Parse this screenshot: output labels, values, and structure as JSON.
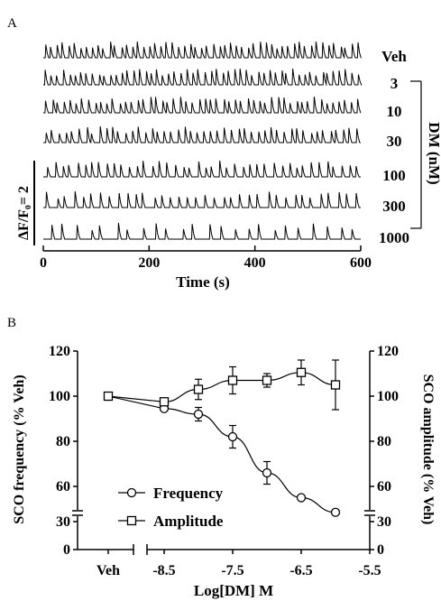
{
  "chart_data": [
    {
      "type": "line",
      "panel_label": "A",
      "xlabel": "Time (s)",
      "xticks": [
        "0",
        "200",
        "400",
        "600"
      ],
      "xlim": [
        0,
        600
      ],
      "scale_bar_label": "ΔF/F₀= 2",
      "concentration_axis_label": "DM (nM)",
      "series": [
        {
          "name": "Veh",
          "peaks_per_600s": 55
        },
        {
          "name": "3",
          "peaks_per_600s": 54
        },
        {
          "name": "10",
          "peaks_per_600s": 52
        },
        {
          "name": "30",
          "peaks_per_600s": 48
        },
        {
          "name": "100",
          "peaks_per_600s": 42
        },
        {
          "name": "300",
          "peaks_per_600s": 36
        },
        {
          "name": "1000",
          "peaks_per_600s": 24
        }
      ]
    },
    {
      "type": "line",
      "panel_label": "B",
      "xlabel": "Log[DM] M",
      "x_tick_labels": [
        "Veh",
        "-8.5",
        "-7.5",
        "-6.5",
        "-5.5"
      ],
      "xlim": [
        -8.75,
        -5.5
      ],
      "ylabel": "SCO frequency (% Veh)",
      "y2label": "SCO amplitude (% Veh)",
      "y_ticks": [
        "0",
        "30",
        "60",
        "80",
        "100",
        "120"
      ],
      "y_axis_break": [
        30,
        50
      ],
      "legend": "lower-left",
      "series": [
        {
          "name": "Frequency",
          "marker": "circle",
          "veh_value": 100,
          "x": [
            -8.5,
            -8.0,
            -7.5,
            -7.0,
            -6.5,
            -6.0
          ],
          "values": [
            94.5,
            92,
            82,
            66,
            55,
            48.5
          ],
          "errors": [
            0,
            3,
            5,
            5,
            0,
            0
          ]
        },
        {
          "name": "Amplitude",
          "marker": "square",
          "veh_value": 100,
          "x": [
            -8.5,
            -8.0,
            -7.5,
            -7.0,
            -6.5,
            -6.0
          ],
          "values": [
            97.5,
            103,
            107,
            107,
            110.5,
            105
          ],
          "errors": [
            0,
            4.5,
            6,
            3,
            5.5,
            11
          ]
        }
      ]
    }
  ]
}
